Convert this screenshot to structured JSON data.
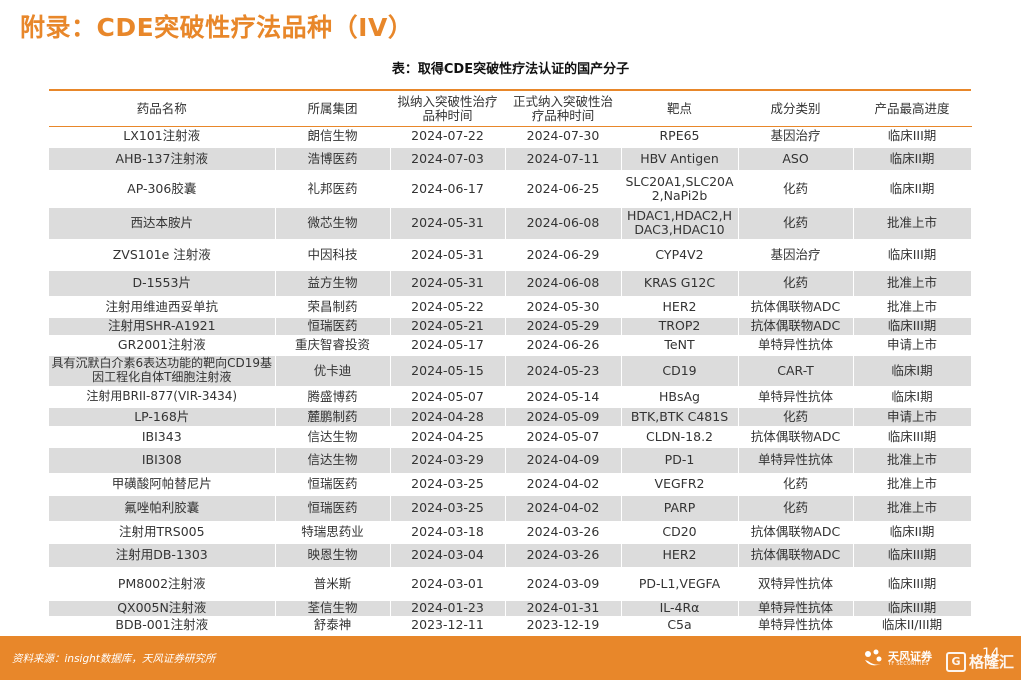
{
  "page": {
    "title": "附录：CDE突破性疗法品种（IV）",
    "caption": "表：取得CDE突破性疗法认证的国产分子"
  },
  "table": {
    "headers": [
      "药品名称",
      "所属集团",
      "拟纳入突破性治疗品种时间",
      "正式纳入突破性治疗品种时间",
      "靶点",
      "成分类别",
      "产品最高进度"
    ],
    "rows": [
      [
        "LX101注射液",
        "朗信生物",
        "2024-07-22",
        "2024-07-30",
        "RPE65",
        "基因治疗",
        "临床III期"
      ],
      [
        "AHB-137注射液",
        "浩博医药",
        "2024-07-03",
        "2024-07-11",
        "HBV Antigen",
        "ASO",
        "临床II期"
      ],
      [
        "AP-306胶囊",
        "礼邦医药",
        "2024-06-17",
        "2024-06-25",
        "SLC20A1,SLC20A2,NaPi2b",
        "化药",
        "临床II期"
      ],
      [
        "西达本胺片",
        "微芯生物",
        "2024-05-31",
        "2024-06-08",
        "HDAC1,HDAC2,HDAC3,HDAC10",
        "化药",
        "批准上市"
      ],
      [
        "ZVS101e 注射液",
        "中因科技",
        "2024-05-31",
        "2024-06-29",
        "CYP4V2",
        "基因治疗",
        "临床III期"
      ],
      [
        "D-1553片",
        "益方生物",
        "2024-05-31",
        "2024-06-08",
        "KRAS G12C",
        "化药",
        "批准上市"
      ],
      [
        "注射用维迪西妥单抗",
        "荣昌制药",
        "2024-05-22",
        "2024-05-30",
        "HER2",
        "抗体偶联物ADC",
        "批准上市"
      ],
      [
        "注射用SHR-A1921",
        "恒瑞医药",
        "2024-05-21",
        "2024-05-29",
        "TROP2",
        "抗体偶联物ADC",
        "临床III期"
      ],
      [
        "GR2001注射液",
        "重庆智睿投资",
        "2024-05-17",
        "2024-06-26",
        "TeNT",
        "单特异性抗体",
        "申请上市"
      ],
      [
        "具有沉默白介素6表达功能的靶向CD19基因工程化自体T细胞注射液",
        "优卡迪",
        "2024-05-15",
        "2024-05-23",
        "CD19",
        "CAR-T",
        "临床I期"
      ],
      [
        "注射用BRII-877(VIR-3434)",
        "腾盛博药",
        "2024-05-07",
        "2024-05-14",
        "HBsAg",
        "单特异性抗体",
        "临床I期"
      ],
      [
        "LP-168片",
        "麓鹏制药",
        "2024-04-28",
        "2024-05-09",
        "BTK,BTK C481S",
        "化药",
        "申请上市"
      ],
      [
        "IBI343",
        "信达生物",
        "2024-04-25",
        "2024-05-07",
        "CLDN-18.2",
        "抗体偶联物ADC",
        "临床III期"
      ],
      [
        "IBI308",
        "信达生物",
        "2024-03-29",
        "2024-04-09",
        "PD-1",
        "单特异性抗体",
        "批准上市"
      ],
      [
        "甲磺酸阿帕替尼片",
        "恒瑞医药",
        "2024-03-25",
        "2024-04-02",
        "VEGFR2",
        "化药",
        "批准上市"
      ],
      [
        "氟唑帕利胶囊",
        "恒瑞医药",
        "2024-03-25",
        "2024-04-02",
        "PARP",
        "化药",
        "批准上市"
      ],
      [
        "注射用TRS005",
        "特瑞思药业",
        "2024-03-18",
        "2024-03-26",
        "CD20",
        "抗体偶联物ADC",
        "临床II期"
      ],
      [
        "注射用DB-1303",
        "映恩生物",
        "2024-03-04",
        "2024-03-26",
        "HER2",
        "抗体偶联物ADC",
        "临床III期"
      ],
      [
        "PM8002注射液",
        "普米斯",
        "2024-03-01",
        "2024-03-09",
        "PD-L1,VEGFA",
        "双特异性抗体",
        "临床III期"
      ],
      [
        "QX005N注射液",
        "荃信生物",
        "2024-01-23",
        "2024-01-31",
        "IL-4Rα",
        "单特异性抗体",
        "临床III期"
      ],
      [
        "BDB-001注射液",
        "舒泰神",
        "2023-12-11",
        "2023-12-19",
        "C5a",
        "单特异性抗体",
        "临床II/III期"
      ]
    ]
  },
  "footer": {
    "source": "资料来源：insight数据库，天风证券研究所",
    "logo_cn": "天风证券",
    "logo_en": "TF SECURITIES",
    "page_number": "14",
    "watermark": "格隆汇"
  },
  "colors": {
    "accent": "#E8872A",
    "row_stripe": "#DCDCDC"
  }
}
